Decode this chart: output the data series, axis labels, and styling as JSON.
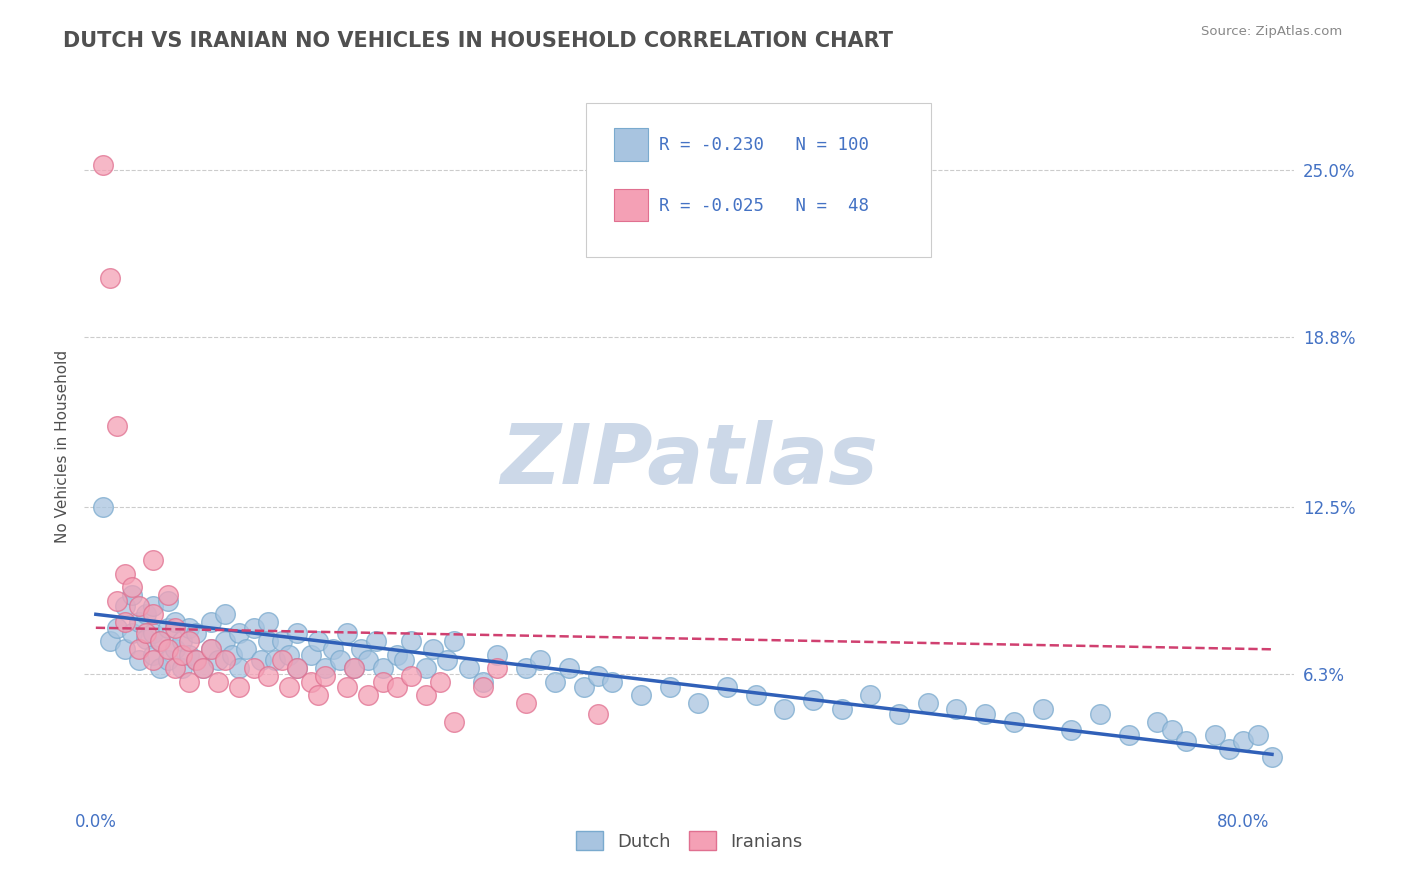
{
  "title": "DUTCH VS IRANIAN NO VEHICLES IN HOUSEHOLD CORRELATION CHART",
  "source": "Source: ZipAtlas.com",
  "ylabel": "No Vehicles in Household",
  "yticks": [
    0.063,
    0.125,
    0.188,
    0.25
  ],
  "ytick_labels": [
    "6.3%",
    "12.5%",
    "18.8%",
    "25.0%"
  ],
  "xlim": [
    -0.008,
    0.835
  ],
  "ylim": [
    0.015,
    0.28
  ],
  "dutch_color": "#a8c4e0",
  "dutch_edge_color": "#7aaace",
  "iranian_color": "#f4a0b5",
  "iranian_edge_color": "#e07090",
  "dutch_line_color": "#3060b8",
  "iranian_line_color": "#d04070",
  "watermark_color": "#ccd8e8",
  "legend_text_color": "#4472c4",
  "title_color": "#505050",
  "axis_label_color": "#4472c4",
  "grid_color": "#cccccc",
  "dutch_x": [
    0.005,
    0.01,
    0.015,
    0.02,
    0.02,
    0.025,
    0.025,
    0.03,
    0.03,
    0.035,
    0.035,
    0.04,
    0.04,
    0.04,
    0.045,
    0.045,
    0.05,
    0.05,
    0.05,
    0.055,
    0.055,
    0.06,
    0.06,
    0.065,
    0.065,
    0.07,
    0.07,
    0.075,
    0.08,
    0.08,
    0.085,
    0.09,
    0.09,
    0.095,
    0.1,
    0.1,
    0.105,
    0.11,
    0.115,
    0.12,
    0.12,
    0.125,
    0.13,
    0.135,
    0.14,
    0.14,
    0.15,
    0.155,
    0.16,
    0.165,
    0.17,
    0.175,
    0.18,
    0.185,
    0.19,
    0.195,
    0.2,
    0.21,
    0.215,
    0.22,
    0.23,
    0.235,
    0.245,
    0.25,
    0.26,
    0.27,
    0.28,
    0.3,
    0.31,
    0.32,
    0.33,
    0.34,
    0.35,
    0.36,
    0.38,
    0.4,
    0.42,
    0.44,
    0.46,
    0.48,
    0.5,
    0.52,
    0.54,
    0.56,
    0.58,
    0.6,
    0.62,
    0.64,
    0.66,
    0.68,
    0.7,
    0.72,
    0.74,
    0.75,
    0.76,
    0.78,
    0.79,
    0.8,
    0.81,
    0.82
  ],
  "dutch_y": [
    0.125,
    0.075,
    0.08,
    0.072,
    0.088,
    0.078,
    0.092,
    0.082,
    0.068,
    0.076,
    0.085,
    0.07,
    0.078,
    0.088,
    0.065,
    0.075,
    0.068,
    0.08,
    0.09,
    0.072,
    0.082,
    0.065,
    0.075,
    0.07,
    0.08,
    0.068,
    0.078,
    0.065,
    0.072,
    0.082,
    0.068,
    0.075,
    0.085,
    0.07,
    0.065,
    0.078,
    0.072,
    0.08,
    0.068,
    0.075,
    0.082,
    0.068,
    0.075,
    0.07,
    0.065,
    0.078,
    0.07,
    0.075,
    0.065,
    0.072,
    0.068,
    0.078,
    0.065,
    0.072,
    0.068,
    0.075,
    0.065,
    0.07,
    0.068,
    0.075,
    0.065,
    0.072,
    0.068,
    0.075,
    0.065,
    0.06,
    0.07,
    0.065,
    0.068,
    0.06,
    0.065,
    0.058,
    0.062,
    0.06,
    0.055,
    0.058,
    0.052,
    0.058,
    0.055,
    0.05,
    0.053,
    0.05,
    0.055,
    0.048,
    0.052,
    0.05,
    0.048,
    0.045,
    0.05,
    0.042,
    0.048,
    0.04,
    0.045,
    0.042,
    0.038,
    0.04,
    0.035,
    0.038,
    0.04,
    0.032
  ],
  "iranian_x": [
    0.005,
    0.01,
    0.015,
    0.015,
    0.02,
    0.02,
    0.025,
    0.03,
    0.03,
    0.035,
    0.04,
    0.04,
    0.04,
    0.045,
    0.05,
    0.05,
    0.055,
    0.055,
    0.06,
    0.065,
    0.065,
    0.07,
    0.075,
    0.08,
    0.085,
    0.09,
    0.1,
    0.11,
    0.12,
    0.13,
    0.135,
    0.14,
    0.15,
    0.155,
    0.16,
    0.175,
    0.18,
    0.19,
    0.2,
    0.21,
    0.22,
    0.23,
    0.24,
    0.25,
    0.27,
    0.28,
    0.3,
    0.35
  ],
  "iranian_y": [
    0.252,
    0.21,
    0.155,
    0.09,
    0.1,
    0.082,
    0.095,
    0.088,
    0.072,
    0.078,
    0.105,
    0.085,
    0.068,
    0.075,
    0.092,
    0.072,
    0.08,
    0.065,
    0.07,
    0.075,
    0.06,
    0.068,
    0.065,
    0.072,
    0.06,
    0.068,
    0.058,
    0.065,
    0.062,
    0.068,
    0.058,
    0.065,
    0.06,
    0.055,
    0.062,
    0.058,
    0.065,
    0.055,
    0.06,
    0.058,
    0.062,
    0.055,
    0.06,
    0.045,
    0.058,
    0.065,
    0.052,
    0.048
  ],
  "dutch_trendline_x0": 0.0,
  "dutch_trendline_y0": 0.085,
  "dutch_trendline_x1": 0.82,
  "dutch_trendline_y1": 0.033,
  "iranian_trendline_x0": 0.0,
  "iranian_trendline_y0": 0.08,
  "iranian_trendline_x1": 0.82,
  "iranian_trendline_y1": 0.072
}
